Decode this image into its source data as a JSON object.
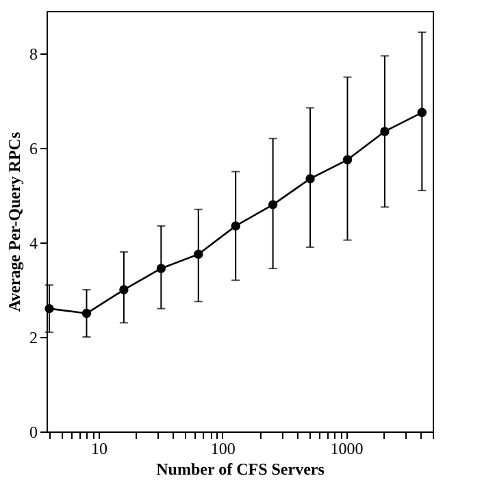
{
  "chart_data": {
    "type": "line",
    "xlabel": "Number of CFS Servers",
    "ylabel": "Average Per-Query RPCs",
    "x": [
      4,
      8,
      16,
      32,
      64,
      128,
      256,
      512,
      1024,
      2048,
      4096
    ],
    "series": [
      {
        "color": "#000000",
        "values": [
          2.6,
          2.5,
          3.0,
          3.45,
          3.75,
          4.35,
          4.8,
          5.35,
          5.75,
          6.35,
          6.75
        ],
        "errors": [
          [
            2.1,
            3.1
          ],
          [
            2.0,
            3.0
          ],
          [
            2.3,
            3.8
          ],
          [
            2.6,
            4.35
          ],
          [
            2.75,
            4.7
          ],
          [
            3.2,
            5.5
          ],
          [
            3.45,
            6.2
          ],
          [
            3.9,
            6.85
          ],
          [
            4.05,
            7.5
          ],
          [
            4.75,
            7.95
          ],
          [
            5.1,
            8.45
          ]
        ]
      }
    ],
    "log": "x",
    "xlim": [
      3.8,
      5000
    ],
    "ylim": [
      0,
      8.9
    ],
    "xticks": [
      {
        "value": 4,
        "label": null
      },
      {
        "value": 5,
        "label": null
      },
      {
        "value": 6,
        "label": null
      },
      {
        "value": 7,
        "label": null
      },
      {
        "value": 8,
        "label": null
      },
      {
        "value": 9,
        "label": null
      },
      10,
      {
        "value": 20,
        "label": null
      },
      {
        "value": 30,
        "label": null
      },
      {
        "value": 40,
        "label": null
      },
      {
        "value": 50,
        "label": null
      },
      {
        "value": 60,
        "label": null
      },
      {
        "value": 70,
        "label": null
      },
      {
        "value": 80,
        "label": null
      },
      {
        "value": 90,
        "label": null
      },
      100,
      {
        "value": 200,
        "label": null
      },
      {
        "value": 300,
        "label": null
      },
      {
        "value": 400,
        "label": null
      },
      {
        "value": 500,
        "label": null
      },
      {
        "value": 600,
        "label": null
      },
      {
        "value": 700,
        "label": null
      },
      {
        "value": 800,
        "label": null
      },
      {
        "value": 900,
        "label": null
      },
      1000,
      {
        "value": 2000,
        "label": null
      },
      {
        "value": 3000,
        "label": null
      },
      {
        "value": 4000,
        "label": null
      },
      {
        "value": 5000,
        "label": null
      }
    ],
    "yticks": [
      0,
      2,
      4,
      6,
      8
    ],
    "grid": false,
    "marker": "circle",
    "line_style": "solid"
  }
}
